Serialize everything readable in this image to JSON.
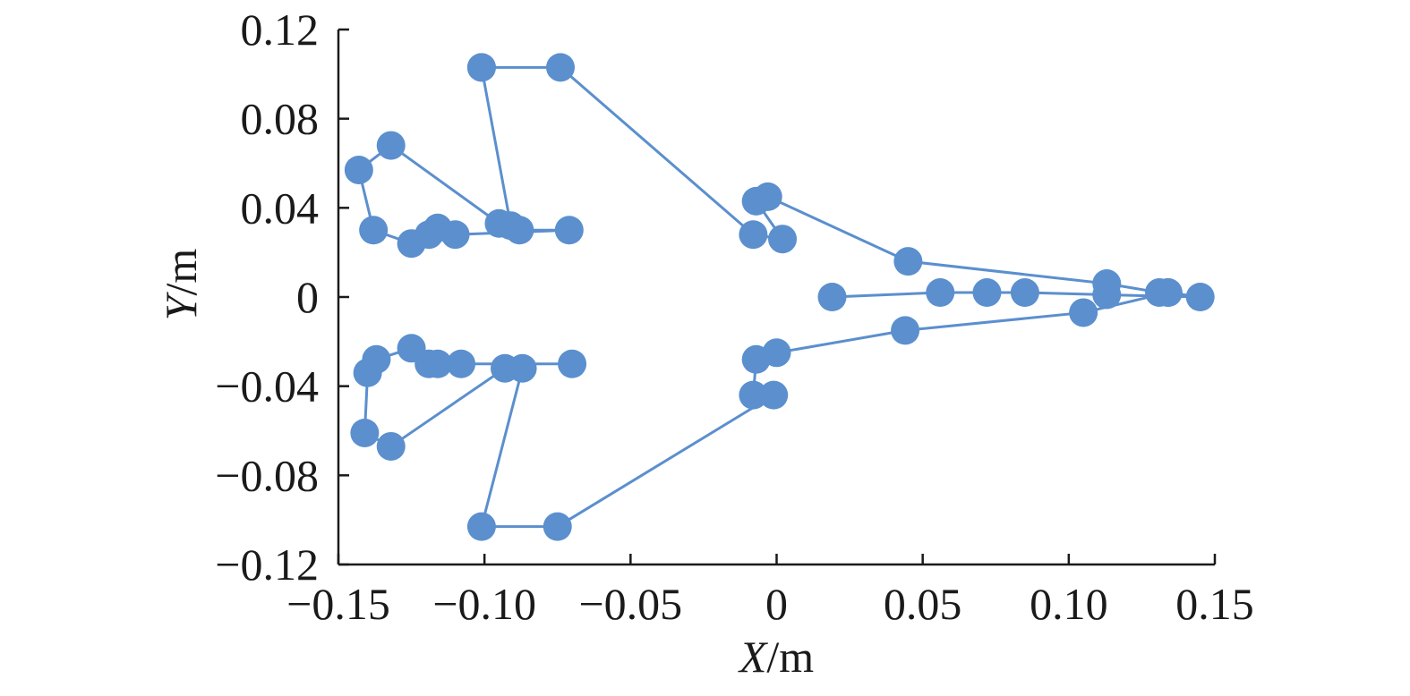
{
  "chart_data": {
    "type": "scatter",
    "title": "",
    "xlabel": {
      "var": "X",
      "unit": "/m"
    },
    "ylabel": {
      "var": "Y",
      "unit": "/m"
    },
    "xlim": [
      -0.15,
      0.15
    ],
    "ylim": [
      -0.12,
      0.12
    ],
    "xticks": [
      -0.15,
      -0.1,
      -0.05,
      0,
      0.05,
      0.1,
      0.15
    ],
    "xtick_labels": [
      "−0.15",
      "−0.10",
      "−0.05",
      "0",
      "0.05",
      "0.10",
      "0.15"
    ],
    "yticks": [
      0.12,
      0.08,
      0.04,
      0,
      -0.04,
      -0.08,
      -0.12
    ],
    "ytick_labels": [
      "0.12",
      "0.08",
      "0.04",
      "0",
      "−0.04",
      "−0.08",
      "−0.12"
    ],
    "grid": false,
    "legend": "none",
    "color": "#5b8fce",
    "series": [
      {
        "points": [
          [
            -0.101,
            0.103
          ],
          [
            -0.074,
            0.103
          ],
          [
            -0.008,
            0.028
          ],
          [
            0.002,
            0.026
          ],
          [
            -0.007,
            0.043
          ],
          [
            -0.003,
            0.045
          ],
          [
            0.045,
            0.016
          ],
          [
            0.113,
            0.006
          ],
          [
            0.131,
            0.002
          ],
          [
            0.134,
            0.002
          ],
          [
            0.145,
            0.0
          ],
          [
            0.113,
            0.001
          ],
          [
            0.085,
            0.002
          ],
          [
            0.072,
            0.002
          ],
          [
            0.056,
            0.002
          ],
          [
            0.019,
            0.0
          ]
        ]
      },
      {
        "points": [
          [
            0.134,
            0.002
          ],
          [
            0.105,
            -0.007
          ],
          [
            0.044,
            -0.015
          ],
          [
            0.0,
            -0.025
          ],
          [
            -0.007,
            -0.028
          ],
          [
            -0.008,
            -0.044
          ],
          [
            -0.001,
            -0.044
          ],
          [
            -0.075,
            -0.103
          ],
          [
            -0.101,
            -0.103
          ],
          [
            -0.087,
            -0.032
          ],
          [
            -0.093,
            -0.032
          ],
          [
            -0.132,
            -0.067
          ],
          [
            -0.141,
            -0.061
          ],
          [
            -0.14,
            -0.034
          ],
          [
            -0.137,
            -0.028
          ],
          [
            -0.125,
            -0.023
          ],
          [
            -0.119,
            -0.03
          ],
          [
            -0.116,
            -0.03
          ],
          [
            -0.108,
            -0.03
          ],
          [
            -0.07,
            -0.03
          ]
        ]
      },
      {
        "points": [
          [
            -0.101,
            0.103
          ],
          [
            -0.091,
            0.032
          ],
          [
            -0.088,
            0.03
          ],
          [
            -0.071,
            0.03
          ],
          [
            -0.11,
            0.028
          ],
          [
            -0.116,
            0.031
          ],
          [
            -0.119,
            0.028
          ],
          [
            -0.125,
            0.024
          ],
          [
            -0.138,
            0.03
          ],
          [
            -0.143,
            0.057
          ],
          [
            -0.132,
            0.068
          ],
          [
            -0.095,
            0.033
          ]
        ]
      }
    ]
  }
}
